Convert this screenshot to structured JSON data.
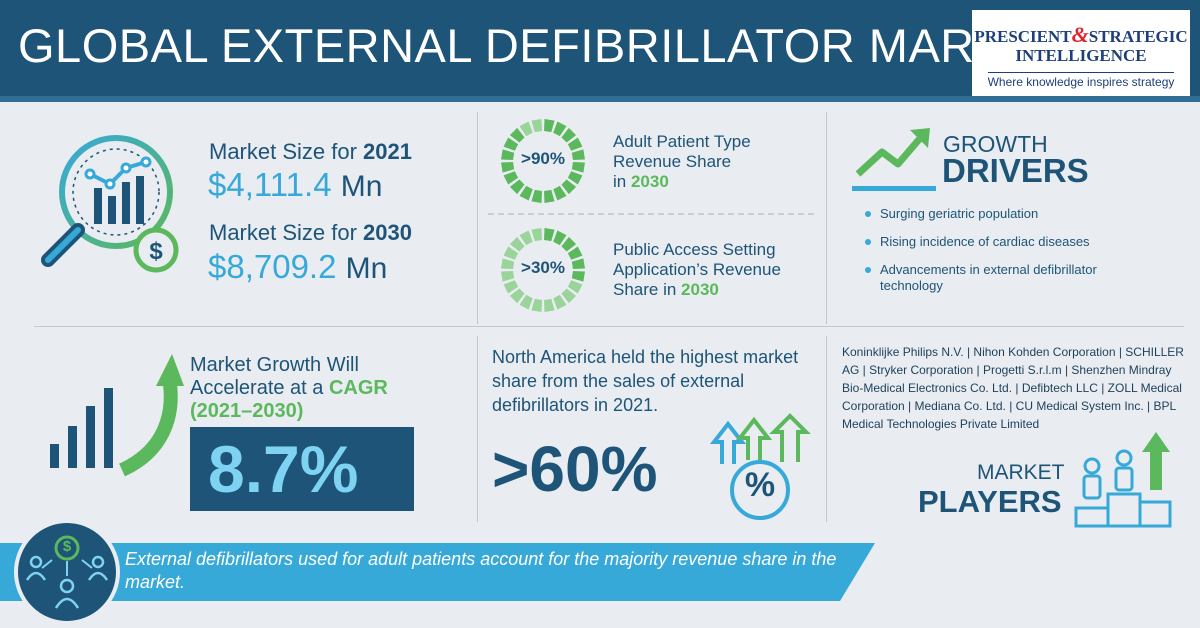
{
  "header": {
    "title": "GLOBAL EXTERNAL DEFIBRILLATOR MARKET",
    "logo": {
      "line1_a": "PRESCIENT",
      "amp": "&",
      "line1_b": "STRATEGIC",
      "line2": "INTELLIGENCE",
      "tagline": "Where knowledge inspires strategy"
    }
  },
  "market_size": {
    "label_2021_prefix": "Market Size for ",
    "year_2021": "2021",
    "value_2021": "$4,111.4",
    "unit_2021": "Mn",
    "label_2030_prefix": "Market Size for ",
    "year_2030": "2030",
    "value_2030": "$8,709.2",
    "unit_2030": "Mn"
  },
  "shares": {
    "adult": {
      "ring_label": ">90%",
      "fraction": 0.9,
      "line1": "Adult Patient Type",
      "line2": "Revenue Share",
      "line3_prefix": "in ",
      "year": "2030"
    },
    "public": {
      "ring_label": ">30%",
      "fraction": 0.3,
      "line1": "Public Access Setting",
      "line2": "Application’s Revenue",
      "line3_prefix": "Share in ",
      "year": "2030"
    }
  },
  "drivers": {
    "small": "GROWTH",
    "big": "DRIVERS",
    "items": [
      "Surging geriatric population",
      "Rising incidence of cardiac diseases",
      "Advancements in external defibrillator technology"
    ]
  },
  "cagr": {
    "line1": "Market Growth Will",
    "line2_prefix": "Accelerate at a ",
    "line2_hi": "CAGR",
    "line3": "(2021–2030)",
    "value": "8.7%"
  },
  "north_america": {
    "text": "North America held the highest market share from the sales of external defibrillators in 2021.",
    "value": ">60%",
    "percent_symbol": "%"
  },
  "players": {
    "list": "Koninklijke Philips N.V. | Nihon Kohden Corporation | SCHILLER AG | Stryker Corporation | Progetti S.r.l.m | Shenzhen Mindray Bio-Medical Electronics Co. Ltd. | Defibtech LLC | ZOLL Medical Corporation | Mediana Co. Ltd. | CU Medical System Inc. | BPL Medical Technologies Private Limited",
    "small": "MARKET",
    "big": "PLAYERS"
  },
  "footer": {
    "text": "External defibrillators used for adult patients account for the majority revenue share in the market.",
    "icon_symbol": "$"
  },
  "colors": {
    "navy": "#1d5478",
    "sky": "#37a9d9",
    "green": "#5cb85c",
    "light_green": "#9ad49a",
    "background": "#e9edf1"
  }
}
